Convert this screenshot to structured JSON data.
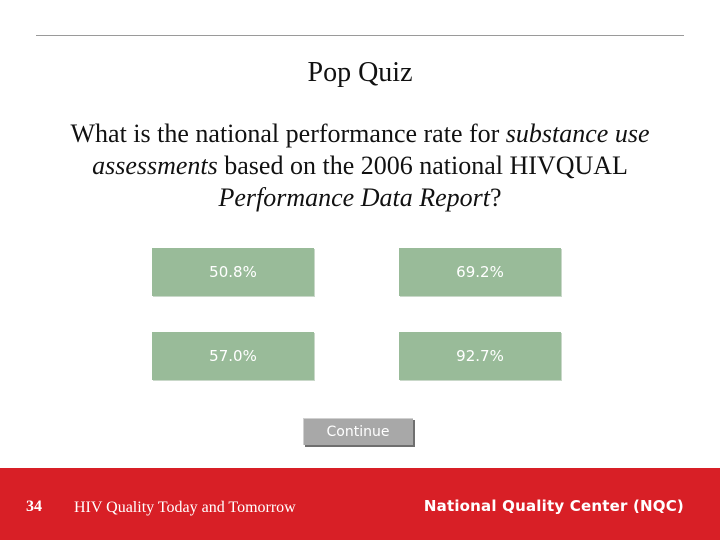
{
  "slide": {
    "title": "Pop Quiz",
    "question": {
      "part1": "What is the national performance rate for ",
      "part2": "substance use assessments",
      "part3": " based on the 2006 national HIVQUAL ",
      "part4": "Performance Data Report",
      "part5": "?"
    }
  },
  "answers": [
    "50.8%",
    "69.2%",
    "57.0%",
    "92.7%"
  ],
  "continue_label": "Continue",
  "colors": {
    "answer_bg": "#99bb99",
    "continue_bg": "#a8a8a8",
    "footer_bg": "#d81f26"
  },
  "footer": {
    "slide_number": "34",
    "title": "HIV Quality Today and Tomorrow",
    "organization": "National Quality Center (NQC)"
  }
}
